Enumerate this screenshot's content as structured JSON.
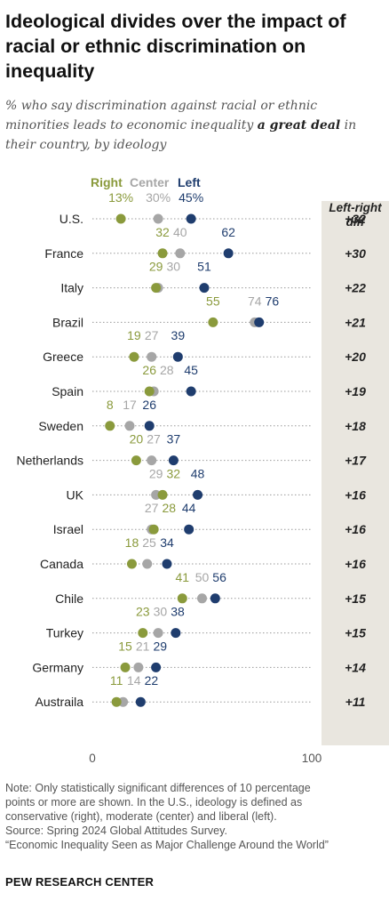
{
  "title": "Ideological divides over the impact of racial or ethnic discrimination on inequality",
  "subtitle_pre": "% who say discrimination against racial or ethnic minorities leads to economic inequality ",
  "subtitle_emph": "a great deal",
  "subtitle_post": " in their country, by ideology",
  "diff_header": "Left-right diff",
  "colors": {
    "right": "#8a9a3c",
    "center": "#a6a6a6",
    "left": "#1f3d6e",
    "diff_bg": "#e9e6df"
  },
  "chart_data": {
    "type": "scatter",
    "xlim": [
      0,
      100
    ],
    "x_ticks": [
      "0",
      "100"
    ],
    "legend": [
      "Right",
      "Center",
      "Left"
    ],
    "series": [
      {
        "name": "Right",
        "color": "#8a9a3c"
      },
      {
        "name": "Center",
        "color": "#a6a6a6"
      },
      {
        "name": "Left",
        "color": "#1f3d6e"
      }
    ],
    "rows": [
      {
        "country": "U.S.",
        "right": 13,
        "center": 30,
        "left": 45,
        "diff": "+32",
        "pct_labels": true
      },
      {
        "country": "France",
        "right": 32,
        "center": 40,
        "left": 62,
        "diff": "+30"
      },
      {
        "country": "Italy",
        "right": 29,
        "center": 30,
        "left": 51,
        "diff": "+22"
      },
      {
        "country": "Brazil",
        "right": 55,
        "center": 74,
        "left": 76,
        "diff": "+21"
      },
      {
        "country": "Greece",
        "right": 19,
        "center": 27,
        "left": 39,
        "diff": "+20"
      },
      {
        "country": "Spain",
        "right": 26,
        "center": 28,
        "left": 45,
        "diff": "+19"
      },
      {
        "country": "Sweden",
        "right": 8,
        "center": 17,
        "left": 26,
        "diff": "+18"
      },
      {
        "country": "Netherlands",
        "right": 20,
        "center": 27,
        "left": 37,
        "diff": "+17"
      },
      {
        "country": "UK",
        "right": 32,
        "center": 29,
        "left": 48,
        "diff": "+16"
      },
      {
        "country": "Israel",
        "right": 28,
        "center": 27,
        "left": 44,
        "diff": "+16"
      },
      {
        "country": "Canada",
        "right": 18,
        "center": 25,
        "left": 34,
        "diff": "+16"
      },
      {
        "country": "Chile",
        "right": 41,
        "center": 50,
        "left": 56,
        "diff": "+15"
      },
      {
        "country": "Turkey",
        "right": 23,
        "center": 30,
        "left": 38,
        "diff": "+15"
      },
      {
        "country": "Germany",
        "right": 15,
        "center": 21,
        "left": 29,
        "diff": "+14"
      },
      {
        "country": "Australia",
        "label": "Austraila",
        "right": 11,
        "center": 14,
        "left": 22,
        "diff": "+11"
      }
    ]
  },
  "notes": [
    "Note: Only statistically significant differences of 10 percentage",
    "points or more are shown. In the U.S., ideology is defined as",
    "conservative (right), moderate (center) and liberal (left).",
    "Source: Spring 2024 Global Attitudes Survey.",
    "“Economic Inequality Seen as Major Challenge Around the World”"
  ],
  "footer": "PEW RESEARCH CENTER"
}
